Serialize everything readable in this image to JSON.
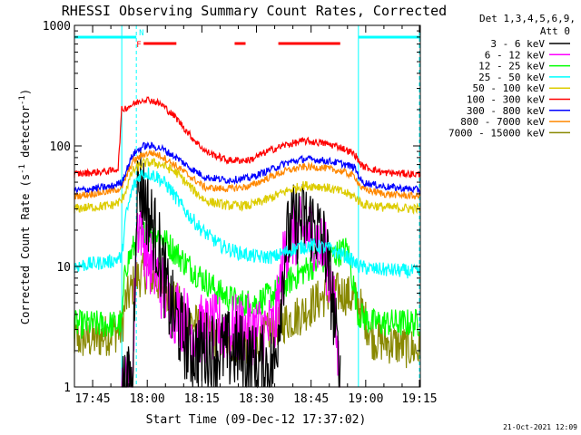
{
  "chart_data": {
    "type": "line",
    "title": "RHESSI Observing Summary Count Rates, Corrected",
    "xlabel": "Start Time (09-Dec-12 17:37:02)",
    "ylabel_main": "Corrected Count Rate (s",
    "ylabel_sup1": "-1",
    "ylabel_mid": " detector",
    "ylabel_sup2": "-1",
    "ylabel_end": ")",
    "yscale": "log",
    "ylim": [
      1,
      1000
    ],
    "xlim_minutes": [
      -20,
      75
    ],
    "y_ticks": [
      {
        "value": 1,
        "label": "1"
      },
      {
        "value": 10,
        "label": "10"
      },
      {
        "value": 100,
        "label": "100"
      },
      {
        "value": 1000,
        "label": "1000"
      }
    ],
    "x_ticks": [
      {
        "t": -15,
        "label": "17:45"
      },
      {
        "t": 0,
        "label": "18:00"
      },
      {
        "t": 15,
        "label": "18:15"
      },
      {
        "t": 30,
        "label": "18:30"
      },
      {
        "t": 45,
        "label": "18:45"
      },
      {
        "t": 60,
        "label": "19:00"
      },
      {
        "t": 75,
        "label": "19:15"
      }
    ],
    "legend": {
      "header1": "Det 1,3,4,5,6,9,",
      "header2": "Att 0",
      "entries": [
        {
          "label": "3 - 6 keV",
          "color": "#000000"
        },
        {
          "label": "6 - 12 keV",
          "color": "#ff00ff"
        },
        {
          "label": "12 - 25 keV",
          "color": "#00ff00"
        },
        {
          "label": "25 - 50 keV",
          "color": "#00ffff"
        },
        {
          "label": "50 - 100 keV",
          "color": "#ddcc00"
        },
        {
          "label": "100 - 300 keV",
          "color": "#ff0000"
        },
        {
          "label": "300 - 800 keV",
          "color": "#0000ff"
        },
        {
          "label": "800 - 7000 keV",
          "color": "#ff8800"
        },
        {
          "label": "7000 - 15000 keV",
          "color": "#888800"
        }
      ]
    },
    "bar_labels": {
      "flare": "F",
      "night": "N"
    },
    "night_segments": [
      [
        -21,
        -3
      ],
      [
        58,
        75
      ]
    ],
    "flare_segments": [
      [
        -1,
        8
      ],
      [
        24,
        27
      ],
      [
        36,
        53
      ]
    ],
    "vertical_markers": {
      "solid": [
        -7,
        58
      ],
      "dashed": [
        -3,
        75
      ]
    },
    "series": [
      {
        "name": "3 - 6 keV",
        "color": "#000000",
        "points": [
          [
            -7,
            1
          ],
          [
            -4,
            1
          ],
          [
            -3,
            40
          ],
          [
            -2,
            52
          ],
          [
            0,
            30
          ],
          [
            3,
            15
          ],
          [
            6,
            5
          ],
          [
            9,
            3
          ],
          [
            12,
            2
          ],
          [
            15,
            2
          ],
          [
            20,
            2
          ],
          [
            25,
            2
          ],
          [
            30,
            1.5
          ],
          [
            35,
            1.5
          ],
          [
            38,
            15
          ],
          [
            40,
            22
          ],
          [
            43,
            24
          ],
          [
            46,
            22
          ],
          [
            49,
            14
          ],
          [
            51,
            5
          ],
          [
            53,
            1
          ]
        ]
      },
      {
        "name": "6 - 12 keV",
        "color": "#ff00ff",
        "points": [
          [
            -7,
            1
          ],
          [
            -4,
            1
          ],
          [
            -3,
            20
          ],
          [
            -2,
            25
          ],
          [
            0,
            12
          ],
          [
            3,
            8
          ],
          [
            6,
            5
          ],
          [
            9,
            4
          ],
          [
            12,
            3
          ],
          [
            20,
            3
          ],
          [
            30,
            3
          ],
          [
            35,
            3
          ],
          [
            38,
            15
          ],
          [
            40,
            18
          ],
          [
            43,
            20
          ],
          [
            46,
            18
          ],
          [
            49,
            12
          ],
          [
            51,
            6
          ],
          [
            53,
            1
          ]
        ]
      },
      {
        "name": "12 - 25 keV",
        "color": "#00ff00",
        "points": [
          [
            -21,
            3.3
          ],
          [
            -7,
            3.3
          ],
          [
            -6,
            10
          ],
          [
            -3,
            16
          ],
          [
            0,
            20
          ],
          [
            3,
            18
          ],
          [
            6,
            15
          ],
          [
            10,
            11
          ],
          [
            15,
            8
          ],
          [
            20,
            6
          ],
          [
            25,
            5
          ],
          [
            30,
            5
          ],
          [
            35,
            6
          ],
          [
            40,
            8
          ],
          [
            45,
            10
          ],
          [
            50,
            12
          ],
          [
            55,
            14
          ],
          [
            58,
            4
          ],
          [
            62,
            3.4
          ],
          [
            75,
            3.4
          ]
        ]
      },
      {
        "name": "25 - 50 keV",
        "color": "#00ffff",
        "points": [
          [
            -21,
            10
          ],
          [
            -10,
            11
          ],
          [
            -7,
            12
          ],
          [
            -6,
            25
          ],
          [
            -4,
            45
          ],
          [
            -2,
            58
          ],
          [
            0,
            60
          ],
          [
            3,
            55
          ],
          [
            6,
            45
          ],
          [
            10,
            30
          ],
          [
            15,
            20
          ],
          [
            20,
            15
          ],
          [
            25,
            13
          ],
          [
            30,
            12
          ],
          [
            35,
            12
          ],
          [
            40,
            14
          ],
          [
            45,
            15
          ],
          [
            50,
            14
          ],
          [
            55,
            12
          ],
          [
            58,
            10
          ],
          [
            62,
            9.5
          ],
          [
            75,
            9
          ]
        ]
      },
      {
        "name": "50 - 100 keV",
        "color": "#ddcc00",
        "points": [
          [
            -21,
            30
          ],
          [
            -10,
            32
          ],
          [
            -7,
            35
          ],
          [
            -4,
            62
          ],
          [
            -1,
            72
          ],
          [
            1,
            73
          ],
          [
            4,
            70
          ],
          [
            8,
            60
          ],
          [
            12,
            45
          ],
          [
            16,
            35
          ],
          [
            22,
            32
          ],
          [
            28,
            32
          ],
          [
            33,
            36
          ],
          [
            38,
            42
          ],
          [
            43,
            47
          ],
          [
            48,
            46
          ],
          [
            53,
            42
          ],
          [
            57,
            38
          ],
          [
            59,
            33
          ],
          [
            65,
            31
          ],
          [
            75,
            30
          ]
        ]
      },
      {
        "name": "100 - 300 keV",
        "color": "#ff0000",
        "points": [
          [
            -21,
            58
          ],
          [
            -10,
            62
          ],
          [
            -8,
            65
          ],
          [
            -7,
            200
          ],
          [
            -4,
            220
          ],
          [
            -1,
            245
          ],
          [
            1,
            240
          ],
          [
            4,
            220
          ],
          [
            8,
            170
          ],
          [
            12,
            120
          ],
          [
            16,
            90
          ],
          [
            22,
            76
          ],
          [
            28,
            76
          ],
          [
            33,
            90
          ],
          [
            38,
            102
          ],
          [
            43,
            110
          ],
          [
            48,
            106
          ],
          [
            53,
            98
          ],
          [
            57,
            85
          ],
          [
            59,
            68
          ],
          [
            65,
            60
          ],
          [
            75,
            58
          ]
        ]
      },
      {
        "name": "300 - 800 keV",
        "color": "#0000ff",
        "points": [
          [
            -21,
            42
          ],
          [
            -10,
            46
          ],
          [
            -7,
            50
          ],
          [
            -4,
            85
          ],
          [
            -1,
            100
          ],
          [
            1,
            100
          ],
          [
            4,
            95
          ],
          [
            8,
            80
          ],
          [
            12,
            65
          ],
          [
            16,
            55
          ],
          [
            22,
            52
          ],
          [
            28,
            54
          ],
          [
            33,
            62
          ],
          [
            38,
            72
          ],
          [
            43,
            78
          ],
          [
            48,
            76
          ],
          [
            53,
            72
          ],
          [
            57,
            66
          ],
          [
            59,
            50
          ],
          [
            65,
            46
          ],
          [
            75,
            43
          ]
        ]
      },
      {
        "name": "800 - 7000 keV",
        "color": "#ff8800",
        "points": [
          [
            -21,
            38
          ],
          [
            -10,
            42
          ],
          [
            -7,
            45
          ],
          [
            -4,
            74
          ],
          [
            -1,
            85
          ],
          [
            1,
            88
          ],
          [
            4,
            82
          ],
          [
            8,
            68
          ],
          [
            12,
            55
          ],
          [
            16,
            45
          ],
          [
            22,
            44
          ],
          [
            28,
            46
          ],
          [
            33,
            54
          ],
          [
            38,
            62
          ],
          [
            43,
            67
          ],
          [
            48,
            66
          ],
          [
            53,
            62
          ],
          [
            57,
            56
          ],
          [
            59,
            44
          ],
          [
            65,
            40
          ],
          [
            75,
            38
          ]
        ]
      },
      {
        "name": "7000 - 15000 keV",
        "color": "#888800",
        "points": [
          [
            -21,
            2.5
          ],
          [
            -14,
            2.5
          ],
          [
            -7,
            3
          ],
          [
            -6,
            5
          ],
          [
            -3,
            8
          ],
          [
            0,
            9
          ],
          [
            4,
            7
          ],
          [
            8,
            5
          ],
          [
            12,
            3.5
          ],
          [
            20,
            2.5
          ],
          [
            30,
            2.2
          ],
          [
            34,
            3
          ],
          [
            38,
            3.5
          ],
          [
            42,
            4
          ],
          [
            46,
            5
          ],
          [
            50,
            6
          ],
          [
            54,
            6
          ],
          [
            58,
            5
          ],
          [
            62,
            2.5
          ],
          [
            75,
            2
          ]
        ]
      }
    ],
    "footer_date": "21-Oct-2021 12:09"
  }
}
